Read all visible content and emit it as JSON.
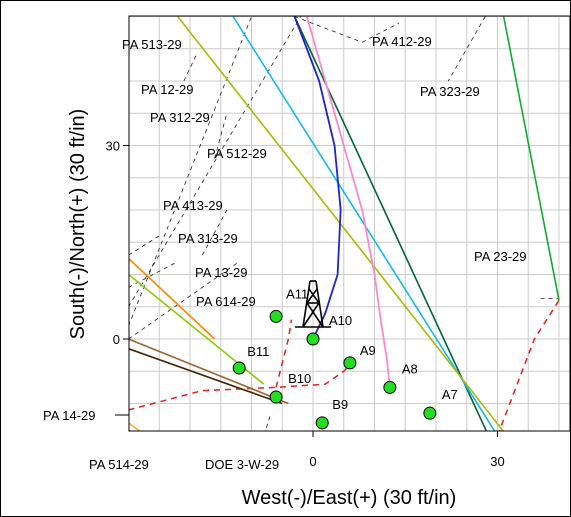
{
  "chart_data": {
    "type": "scatter",
    "title": "",
    "xlabel": "West(-)/East(+) (30 ft/in)",
    "ylabel": "South(-)/North(+) (30 ft/in)",
    "xlim": [
      -30,
      40
    ],
    "ylim": [
      -18,
      50
    ],
    "x_ticks": [
      0,
      30
    ],
    "y_ticks": [
      0,
      30
    ],
    "grid": true,
    "legend": "none",
    "colors": {
      "well": "#22dd22",
      "lease_line": "#000000",
      "red_dash": "#e02020"
    },
    "wells": [
      {
        "name": "A10",
        "x": 0,
        "y": 0
      },
      {
        "name": "A11",
        "x": -6,
        "y": 3.5
      },
      {
        "name": "A9",
        "x": 6,
        "y": -3.7
      },
      {
        "name": "A8",
        "x": 12.5,
        "y": -7.5
      },
      {
        "name": "A7",
        "x": 19,
        "y": -11.5
      },
      {
        "name": "B11",
        "x": -12,
        "y": -4.5
      },
      {
        "name": "B10",
        "x": -6,
        "y": -9
      },
      {
        "name": "B9",
        "x": 1.5,
        "y": -13
      }
    ],
    "lease_labels": [
      "PA 513-29",
      "PA 412-29",
      "PA 12-29",
      "PA 323-29",
      "PA 312-29",
      "PA 512-29",
      "PA 413-29",
      "PA 313-29",
      "PA 13-29",
      "PA 614-29",
      "PA 23-29",
      "PA 14-29",
      "PA 514-29",
      "DOE 3-W-29"
    ],
    "well_trajectories": [
      {
        "color": "#ff88cc",
        "x": [
          -1,
          2,
          5,
          8,
          10,
          11,
          12,
          12.5
        ],
        "y": [
          50,
          40,
          30,
          20,
          10,
          3,
          -3,
          -7.5
        ]
      },
      {
        "color": "#2222cc",
        "x": [
          -3,
          1,
          3.5,
          4.5,
          4,
          2,
          0
        ],
        "y": [
          50,
          40,
          30,
          20,
          10,
          4,
          0
        ]
      }
    ],
    "long_lines": [
      {
        "color": "#006633",
        "x": [
          -3,
          30
        ],
        "y": [
          50,
          -18
        ]
      },
      {
        "color": "#11bbee",
        "x": [
          -13,
          32
        ],
        "y": [
          50,
          -18
        ]
      },
      {
        "color": "#aabb00",
        "x": [
          -22,
          34
        ],
        "y": [
          50,
          -18
        ]
      },
      {
        "color": "#11aa33",
        "x": [
          31,
          40
        ],
        "y": [
          50,
          6
        ]
      },
      {
        "color": "#ff8800",
        "x": [
          -30,
          -16
        ],
        "y": [
          12.5,
          0
        ]
      },
      {
        "color": "#88cc00",
        "x": [
          -30,
          -8
        ],
        "y": [
          10,
          -7
        ]
      },
      {
        "color": "#996633",
        "x": [
          -30,
          -4
        ],
        "y": [
          0,
          -10
        ]
      },
      {
        "color": "#442200",
        "x": [
          -30,
          -5
        ],
        "y": [
          -1.5,
          -10
        ]
      },
      {
        "color": "#ffaa44",
        "x": [
          -30,
          -23
        ],
        "y": [
          -13,
          -18
        ]
      }
    ]
  }
}
